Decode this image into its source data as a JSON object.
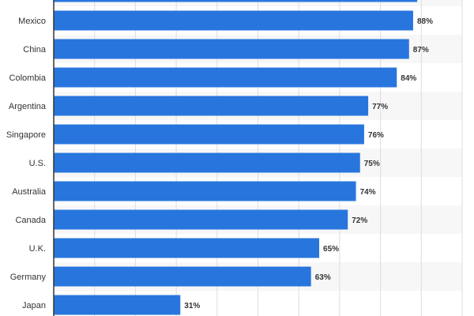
{
  "chart_data": {
    "type": "bar",
    "orientation": "horizontal",
    "categories": [
      "",
      "Mexico",
      "China",
      "Colombia",
      "Argentina",
      "Singapore",
      "U.S.",
      "Australia",
      "Canada",
      "U.K.",
      "Germany",
      "Japan"
    ],
    "values": [
      89,
      88,
      87,
      84,
      77,
      76,
      75,
      74,
      72,
      65,
      63,
      31
    ],
    "value_labels": [
      "",
      "88%",
      "87%",
      "84%",
      "77%",
      "76%",
      "75%",
      "74%",
      "72%",
      "65%",
      "63%",
      "31%"
    ],
    "unit": "%",
    "xlim": [
      0,
      100
    ],
    "grid": true,
    "title": "",
    "xlabel": "",
    "ylabel": "",
    "colors": {
      "bar": "#2876dd",
      "stripe": "#f7f7f7",
      "grid": "#dddddd",
      "axis": "#333333"
    }
  }
}
